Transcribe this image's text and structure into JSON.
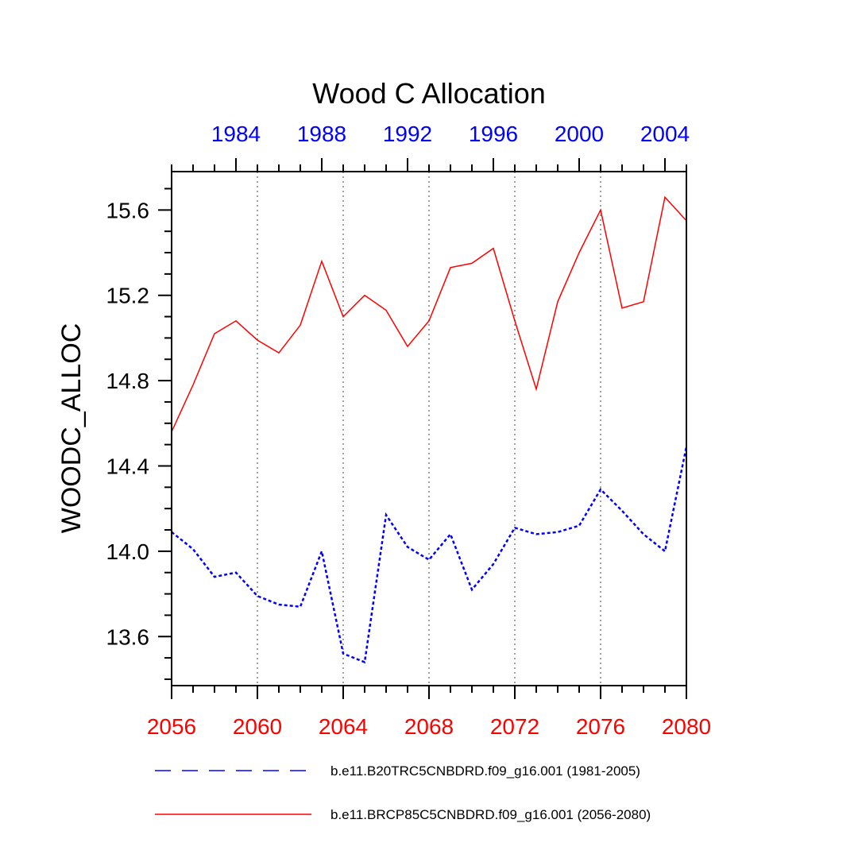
{
  "chart_data": {
    "type": "line",
    "title": "Wood C Allocation",
    "ylabel": "WOODC_ALLOC",
    "xlabel": "",
    "ylim": [
      13.37,
      15.78
    ],
    "yticks": [
      13.6,
      14.0,
      14.4,
      14.8,
      15.2,
      15.6
    ],
    "ytick_labels": [
      "13.6",
      "14.0",
      "14.4",
      "14.8",
      "15.2",
      "15.6"
    ],
    "xlim_bottom": [
      2056,
      2080
    ],
    "xticks_bottom": [
      2056,
      2060,
      2064,
      2068,
      2072,
      2076,
      2080
    ],
    "xtick_labels_bottom": [
      "2056",
      "2060",
      "2064",
      "2068",
      "2072",
      "2076",
      "2080"
    ],
    "xlim_top": [
      1981,
      2005
    ],
    "xticks_top": [
      1984,
      1988,
      1992,
      1996,
      2000,
      2004
    ],
    "xtick_labels_top": [
      "1984",
      "1988",
      "1992",
      "1996",
      "2000",
      "2004"
    ],
    "grid": "vertical dotted",
    "series": [
      {
        "name": "b.e11.BRCP85C5CNBDRD.f09_g16.001 (2056-2080)",
        "axis": "bottom",
        "color": "#ff0000",
        "style": "solid",
        "x": [
          2056,
          2057,
          2058,
          2059,
          2060,
          2061,
          2062,
          2063,
          2064,
          2065,
          2066,
          2067,
          2068,
          2069,
          2070,
          2071,
          2072,
          2073,
          2074,
          2075,
          2076,
          2077,
          2078,
          2079,
          2080
        ],
        "values": [
          14.56,
          14.78,
          15.02,
          15.08,
          14.99,
          14.93,
          15.06,
          15.36,
          15.1,
          15.2,
          15.13,
          14.96,
          15.08,
          15.33,
          15.35,
          15.42,
          15.08,
          14.76,
          15.17,
          15.4,
          15.6,
          15.14,
          15.17,
          15.66,
          15.55
        ]
      },
      {
        "name": "b.e11.B20TRC5CNBDRD.f09_g16.001 (1981-2005)",
        "axis": "top",
        "color": "#0000ff",
        "style": "dashed",
        "x": [
          1981,
          1982,
          1983,
          1984,
          1985,
          1986,
          1987,
          1988,
          1989,
          1990,
          1991,
          1992,
          1993,
          1994,
          1995,
          1996,
          1997,
          1998,
          1999,
          2000,
          2001,
          2002,
          2003,
          2004,
          2005
        ],
        "values": [
          14.09,
          14.01,
          13.88,
          13.9,
          13.79,
          13.75,
          13.74,
          14.0,
          13.52,
          13.48,
          14.17,
          14.02,
          13.96,
          14.08,
          13.82,
          13.94,
          14.11,
          14.08,
          14.09,
          14.12,
          14.29,
          14.19,
          14.08,
          14.0,
          14.49
        ]
      }
    ],
    "legend": {
      "placement": "bottom",
      "entries": [
        {
          "label": "b.e11.B20TRC5CNBDRD.f09_g16.001 (1981-2005)",
          "color": "#0000ff",
          "style": "dashed"
        },
        {
          "label": "b.e11.BRCP85C5CNBDRD.f09_g16.001 (2056-2080)",
          "color": "#ff0000",
          "style": "solid"
        }
      ]
    },
    "colors": {
      "bottom_axis": "#ff0000",
      "top_axis": "#0000ff",
      "grid": "#a0a0a0",
      "axis": "#000000"
    }
  }
}
